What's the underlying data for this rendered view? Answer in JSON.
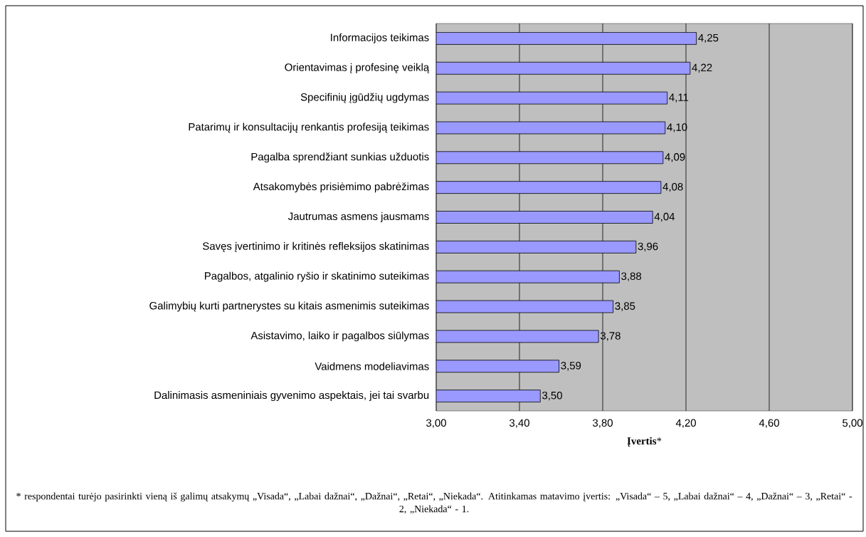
{
  "chart_data": {
    "type": "bar",
    "orientation": "horizontal",
    "xlabel": "**Įvertis***",
    "categories": [
      "Informacijos teikimas",
      "Orientavimas į profesinę veiklą",
      "Specifinių įgūdžių ugdymas",
      "Patarimų ir konsultacijų renkantis profesiją teikimas",
      "Pagalba sprendžiant sunkias užduotis",
      "Atsakomybės prisiėmimo pabrėžimas",
      "Jautrumas asmens jausmams",
      "Savęs įvertinimo ir kritinės refleksijos skatinimas",
      "Pagalbos, atgalinio ryšio ir skatinimo suteikimas",
      "Galimybių kurti partnerystes su kitais asmenimis suteikimas",
      "Asistavimo, laiko ir pagalbos siūlymas",
      "Vaidmens modeliavimas",
      "Dalinimasis asmeniniais gyvenimo aspektais, jei tai svarbu"
    ],
    "values": [
      4.25,
      4.22,
      4.11,
      4.1,
      4.09,
      4.08,
      4.04,
      3.96,
      3.88,
      3.85,
      3.78,
      3.59,
      3.5
    ],
    "value_labels": [
      "4,25",
      "4,22",
      "4,11",
      "4,10",
      "4,09",
      "4,08",
      "4,04",
      "3,96",
      "3,88",
      "3,85",
      "3,78",
      "3,59",
      "3,50"
    ],
    "color": "#9999ff",
    "xlim": [
      3,
      5
    ],
    "xticks": [
      {
        "value": 3,
        "label": "3,00"
      },
      {
        "value": 3.4,
        "label": "3,40"
      },
      {
        "value": 3.8,
        "label": "3,80"
      },
      {
        "value": 4.2,
        "label": "4,20"
      },
      {
        "value": 4.6,
        "label": "4,60"
      },
      {
        "value": 5,
        "label": "5,00"
      }
    ],
    "grid": "x",
    "annotations": [
      "* respondentai turėjo pasirinkti vieną iš galimų atsakymų „Visada“, „Labai dažnai“, „Dažnai“, „Retai“, „Niekada“. Atitinkamas matavimo įvertis: „Visada“ – 5, „Labai dažnai“ – 4, „Dažnai“ – 3, „Retai“ - 2, „Niekada“ - 1."
    ]
  }
}
